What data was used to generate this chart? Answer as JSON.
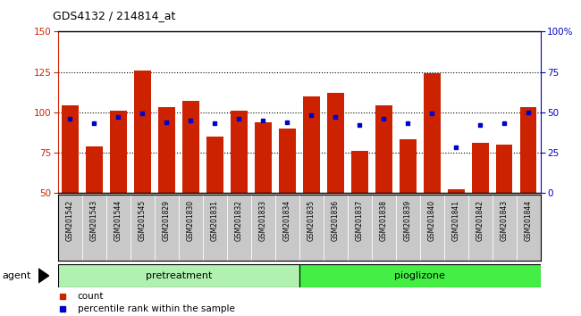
{
  "title": "GDS4132 / 214814_at",
  "categories": [
    "GSM201542",
    "GSM201543",
    "GSM201544",
    "GSM201545",
    "GSM201829",
    "GSM201830",
    "GSM201831",
    "GSM201832",
    "GSM201833",
    "GSM201834",
    "GSM201835",
    "GSM201836",
    "GSM201837",
    "GSM201838",
    "GSM201839",
    "GSM201840",
    "GSM201841",
    "GSM201842",
    "GSM201843",
    "GSM201844"
  ],
  "count_values": [
    104,
    79,
    101,
    126,
    103,
    107,
    85,
    101,
    94,
    90,
    110,
    112,
    76,
    104,
    83,
    124,
    52,
    81,
    80,
    103
  ],
  "percentile_values": [
    46,
    43,
    47,
    49,
    44,
    45,
    43,
    46,
    45,
    44,
    48,
    47,
    42,
    46,
    43,
    49,
    28,
    42,
    43,
    50
  ],
  "group1_label": "pretreatment",
  "group2_label": "pioglizone",
  "group1_count": 10,
  "group2_count": 10,
  "bar_color": "#cc2200",
  "dot_color": "#0000cc",
  "y_min": 50,
  "y_max": 150,
  "y_ticks": [
    50,
    75,
    100,
    125,
    150
  ],
  "y_right_ticks": [
    0,
    25,
    50,
    75,
    100
  ],
  "y_right_labels": [
    "0",
    "25",
    "50",
    "75",
    "100%"
  ],
  "grid_values": [
    75,
    100,
    125
  ],
  "agent_label": "agent",
  "legend_count_label": "count",
  "legend_percentile_label": "percentile rank within the sample",
  "bg_color": "#ffffff",
  "tick_label_color_left": "#cc2200",
  "tick_label_color_right": "#0000cc",
  "group_bg_color1": "#b0f0b0",
  "group_bg_color2": "#44ee44",
  "tickbox_color": "#c8c8c8",
  "bar_bottom": 50,
  "bar_width": 0.7
}
